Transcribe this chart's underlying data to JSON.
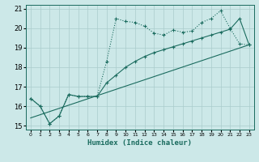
{
  "title": "",
  "xlabel": "Humidex (Indice chaleur)",
  "ylabel": "",
  "xlim": [
    -0.5,
    23.5
  ],
  "ylim": [
    14.8,
    21.2
  ],
  "yticks": [
    15,
    16,
    17,
    18,
    19,
    20,
    21
  ],
  "xticks": [
    0,
    1,
    2,
    3,
    4,
    5,
    6,
    7,
    8,
    9,
    10,
    11,
    12,
    13,
    14,
    15,
    16,
    17,
    18,
    19,
    20,
    21,
    22,
    23
  ],
  "bg_color": "#cce8e8",
  "grid_color": "#aacccc",
  "line_color": "#1a6b5e",
  "line1_x": [
    0,
    1,
    2,
    3,
    4,
    5,
    6,
    7,
    8,
    9,
    10,
    11,
    12,
    13,
    14,
    15,
    16,
    17,
    18,
    19,
    20,
    21,
    22,
    23
  ],
  "line1_y": [
    16.4,
    16.0,
    15.1,
    15.5,
    16.6,
    16.5,
    16.5,
    16.5,
    18.3,
    20.5,
    20.35,
    20.3,
    20.1,
    19.75,
    19.65,
    19.9,
    19.8,
    19.85,
    20.3,
    20.5,
    20.9,
    20.0,
    19.2,
    19.15
  ],
  "line2_x": [
    0,
    1,
    2,
    3,
    4,
    5,
    6,
    7,
    8,
    9,
    10,
    11,
    12,
    13,
    14,
    15,
    16,
    17,
    18,
    19,
    20,
    21,
    22,
    23
  ],
  "line2_y": [
    16.4,
    16.0,
    15.1,
    15.5,
    16.6,
    16.5,
    16.5,
    16.5,
    17.2,
    17.6,
    18.0,
    18.3,
    18.55,
    18.75,
    18.9,
    19.05,
    19.2,
    19.35,
    19.5,
    19.65,
    19.8,
    19.95,
    20.5,
    19.15
  ],
  "line3_x": [
    0,
    23
  ],
  "line3_y": [
    15.4,
    19.15
  ]
}
